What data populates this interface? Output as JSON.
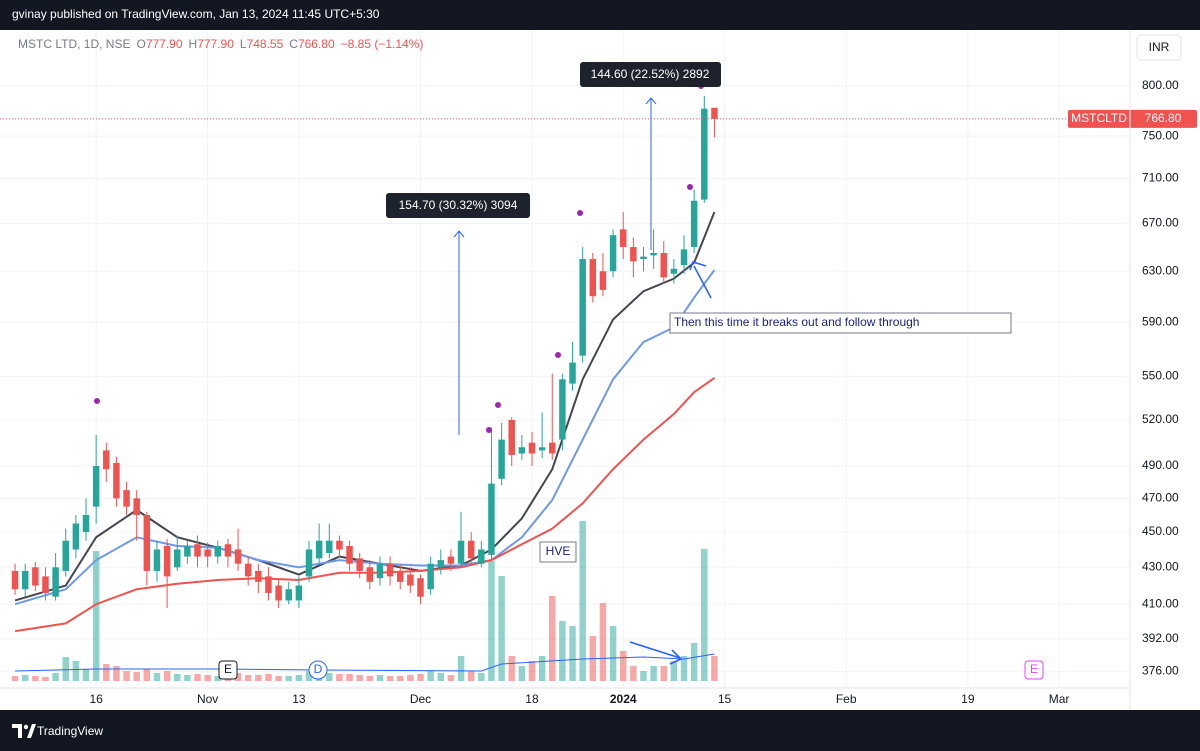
{
  "header": {
    "publisher": "gvinay published on TradingView.com, Jan 13, 2024 11:45 UTC+5:30"
  },
  "legend": {
    "symbol": "MSTC LTD, 1D, NSE",
    "o": "O",
    "open": "777.90",
    "h": "H",
    "high": "777.90",
    "l": "L",
    "low": "748.55",
    "c": "C",
    "close": "766.80",
    "change": "−8.85 (−1.14%)"
  },
  "currency": "INR",
  "price_tag": {
    "symbol": "MSTCLTD",
    "price": "766.80"
  },
  "annotations": {
    "measure_1": "154.70 (30.32%) 3094",
    "measure_2": "144.60 (22.52%) 2892",
    "note": "Then this time it breaks out and follow through",
    "hve": "HVE"
  },
  "events": [
    "E",
    "D",
    "E"
  ],
  "footer": {
    "brand": "TradingView"
  },
  "chart_data": {
    "type": "candlestick",
    "up_color": "#26a69a",
    "down_color": "#ef5350",
    "open": [
      428,
      418,
      430,
      425,
      414,
      428,
      440,
      450,
      465,
      500,
      492,
      475,
      470,
      460,
      428,
      442,
      430,
      436,
      443,
      440,
      436,
      443,
      440,
      432,
      428,
      425,
      420,
      412,
      412,
      425,
      435,
      438,
      445,
      442,
      435,
      430,
      424,
      432,
      428,
      426,
      424,
      418,
      430,
      436,
      432,
      445,
      432,
      437,
      482,
      520,
      498,
      505,
      500,
      505,
      507,
      545,
      565,
      640,
      630,
      630,
      665,
      650,
      640,
      643,
      645,
      628,
      635,
      650,
      691,
      777.9
    ],
    "high": [
      432,
      432,
      433,
      430,
      438,
      452,
      460,
      470,
      510,
      505,
      496,
      480,
      475,
      462,
      445,
      446,
      448,
      445,
      448,
      444,
      445,
      446,
      452,
      436,
      432,
      430,
      424,
      422,
      425,
      445,
      455,
      455,
      448,
      445,
      438,
      434,
      436,
      436,
      432,
      430,
      426,
      436,
      440,
      440,
      462,
      450,
      445,
      515,
      518,
      522,
      510,
      512,
      525,
      552,
      552,
      575,
      650,
      645,
      645,
      665,
      680,
      658,
      650,
      665,
      655,
      640,
      660,
      700,
      790,
      777.9
    ],
    "low": [
      415,
      414,
      417,
      412,
      412,
      425,
      435,
      445,
      455,
      480,
      465,
      460,
      445,
      420,
      422,
      408,
      428,
      432,
      430,
      430,
      432,
      430,
      428,
      420,
      416,
      412,
      408,
      410,
      408,
      422,
      432,
      435,
      435,
      428,
      424,
      418,
      420,
      420,
      418,
      416,
      410,
      415,
      426,
      428,
      430,
      432,
      430,
      434,
      478,
      490,
      494,
      490,
      495,
      494,
      500,
      540,
      560,
      605,
      610,
      625,
      640,
      625,
      630,
      632,
      620,
      620,
      628,
      645,
      688,
      748.55
    ],
    "close": [
      418,
      428,
      420,
      416,
      430,
      445,
      455,
      460,
      490,
      488,
      470,
      465,
      460,
      428,
      440,
      425,
      440,
      442,
      436,
      436,
      442,
      436,
      432,
      425,
      422,
      416,
      412,
      418,
      420,
      440,
      445,
      445,
      440,
      432,
      428,
      422,
      432,
      425,
      422,
      420,
      414,
      432,
      434,
      432,
      445,
      435,
      440,
      479,
      507,
      497,
      502,
      498,
      502,
      498,
      548,
      560,
      640,
      610,
      615,
      660,
      650,
      638,
      642,
      645,
      625,
      632,
      648,
      690,
      777,
      766.8
    ],
    "volume": [
      5,
      6,
      5,
      4,
      8,
      24,
      20,
      12,
      130,
      17,
      15,
      10,
      9,
      12,
      8,
      10,
      7,
      6,
      7,
      6,
      5,
      6,
      8,
      6,
      6,
      7,
      5,
      5,
      6,
      10,
      12,
      8,
      7,
      7,
      6,
      5,
      6,
      5,
      5,
      6,
      7,
      10,
      8,
      6,
      25,
      10,
      8,
      120,
      105,
      25,
      15,
      20,
      25,
      85,
      60,
      55,
      160,
      45,
      78,
      55,
      30,
      15,
      10,
      15,
      15,
      20,
      25,
      38,
      132,
      25
    ],
    "lines": [
      {
        "color": "#434651",
        "x": [
          0,
          5,
          8,
          12,
          16,
          20,
          24,
          28,
          32,
          36,
          40,
          44,
          47,
          50,
          53,
          56,
          59,
          62,
          65,
          67,
          69
        ],
        "values": [
          412,
          420,
          447,
          463,
          447,
          441,
          434,
          426,
          436,
          432,
          428,
          431,
          440,
          458,
          488,
          548,
          592,
          614,
          624,
          637,
          680
        ]
      },
      {
        "color": "#6e98e8",
        "x": [
          0,
          5,
          8,
          12,
          16,
          20,
          24,
          28,
          32,
          36,
          40,
          44,
          47,
          50,
          53,
          56,
          59,
          62,
          65,
          67,
          69
        ],
        "values": [
          410,
          418,
          434,
          447,
          442,
          441,
          434,
          430,
          434,
          432,
          431,
          431,
          434,
          447,
          469,
          507,
          548,
          575,
          586,
          609,
          631
        ]
      },
      {
        "color": "#ef5350",
        "x": [
          0,
          5,
          8,
          12,
          16,
          20,
          24,
          28,
          32,
          36,
          40,
          44,
          47,
          50,
          53,
          56,
          59,
          62,
          65,
          67,
          69
        ],
        "values": [
          396,
          400,
          410,
          418,
          421,
          423,
          424,
          423,
          427,
          427,
          428,
          430,
          434,
          443,
          452,
          467,
          488,
          507,
          524,
          539,
          549
        ]
      }
    ],
    "volume_ma": {
      "color": "#2962ff",
      "x": [
        0,
        8,
        20,
        30,
        46,
        48,
        56,
        62,
        66,
        69
      ],
      "values": [
        10,
        12,
        12,
        11,
        10,
        17,
        22,
        24,
        22,
        27
      ]
    },
    "xlim": [
      -0.5,
      110
    ],
    "xticks": [
      {
        "value": 8,
        "label": "16"
      },
      {
        "value": 19,
        "label": "Nov"
      },
      {
        "value": 28,
        "label": "13"
      },
      {
        "value": 40,
        "label": "Dec"
      },
      {
        "value": 51,
        "label": "18"
      },
      {
        "value": 60,
        "label": "2024"
      },
      {
        "value": 70,
        "label": "15"
      },
      {
        "value": 82,
        "label": "Feb"
      },
      {
        "value": 94,
        "label": "19"
      },
      {
        "value": 103,
        "label": "Mar"
      }
    ],
    "ylim": [
      368,
      860
    ],
    "log_scale": true,
    "grid": true,
    "yticks": [
      {
        "value": 800,
        "label": "800.00"
      },
      {
        "value": 750,
        "label": "750.00"
      },
      {
        "value": 710,
        "label": "710.00"
      },
      {
        "value": 670,
        "label": "670.00"
      },
      {
        "value": 630,
        "label": "630.00"
      },
      {
        "value": 590,
        "label": "590.00"
      },
      {
        "value": 550,
        "label": "550.00"
      },
      {
        "value": 520,
        "label": "520.00"
      },
      {
        "value": 490,
        "label": "490.00"
      },
      {
        "value": 470,
        "label": "470.00"
      },
      {
        "value": 450,
        "label": "450.00"
      },
      {
        "value": 430,
        "label": "430.00"
      },
      {
        "value": 410,
        "label": "410.00"
      },
      {
        "value": 392,
        "label": "392.00"
      },
      {
        "value": 376,
        "label": "376.00"
      }
    ]
  }
}
